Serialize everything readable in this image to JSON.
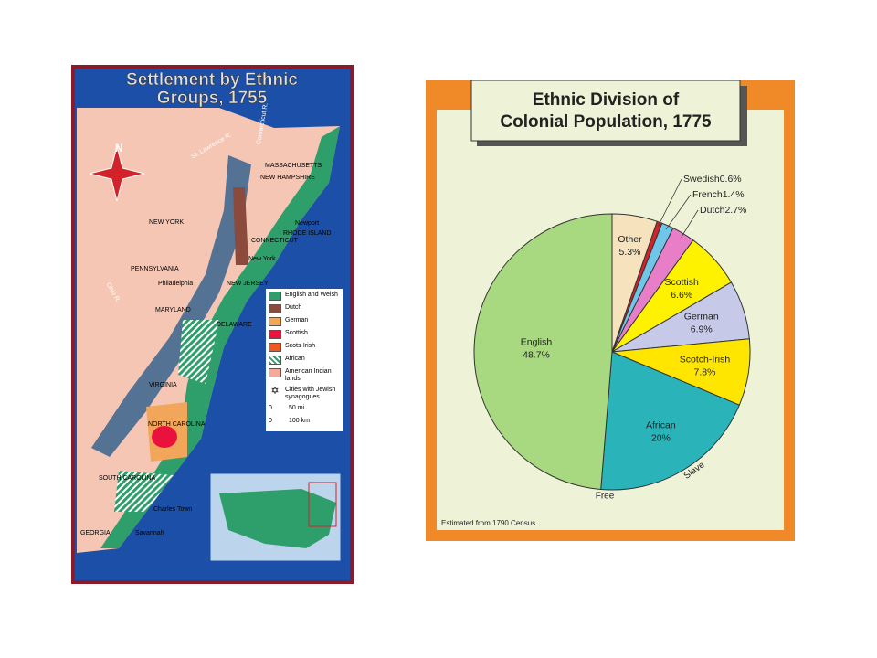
{
  "map": {
    "title": [
      "Settlement by Ethnic",
      "Groups, 1755"
    ],
    "legend": [
      {
        "label": "English and Welsh",
        "color": "#2e9e6a"
      },
      {
        "label": "Dutch",
        "color": "#8b4a3c"
      },
      {
        "label": "German",
        "color": "#f2a65a"
      },
      {
        "label": "Scottish",
        "color": "#e8123c"
      },
      {
        "label": "Scots-Irish",
        "color": "#ee5a24"
      },
      {
        "label": "African",
        "color": "#2e9e6a",
        "style": "hatch"
      },
      {
        "label": "American Indian lands",
        "color": "#f4a99a"
      },
      {
        "label": "Cities with Jewish synagogues",
        "color": "#000000",
        "style": "star"
      }
    ],
    "scale": [
      "0",
      "50 mi",
      "0",
      "100 km"
    ],
    "labels": [
      "N",
      "St. Lawrence R.",
      "Connecticut R.",
      "MASSACHUSETTS",
      "NEW HAMPSHIRE",
      "NEW YORK",
      "Newport",
      "RHODE ISLAND",
      "CONNECTICUT",
      "New York",
      "PENNSYLVANIA",
      "Philadelphia",
      "NEW JERSEY",
      "MARYLAND",
      "DELAWARE",
      "Ohio R.",
      "VIRGINIA",
      "NORTH CAROLINA",
      "SOUTH CAROLINA",
      "Charles Town",
      "GEORGIA",
      "Savannah"
    ]
  },
  "chart_data": {
    "type": "pie",
    "title": [
      "Ethnic Division of",
      "Colonial Population, 1775"
    ],
    "categories": [
      "Other",
      "Swedish",
      "French",
      "Dutch",
      "Scottish",
      "German",
      "Scotch-Irish",
      "African",
      "English"
    ],
    "values": [
      5.3,
      0.6,
      1.4,
      2.7,
      6.6,
      6.9,
      7.8,
      20,
      48.7
    ],
    "value_labels": [
      "5.3%",
      "0.6%",
      "1.4%",
      "2.7%",
      "6.6%",
      "6.9%",
      "7.8%",
      "20%",
      "48.7%"
    ],
    "colors": [
      "#f6e2bc",
      "#d2232a",
      "#6fc6e8",
      "#e97ec8",
      "#fff200",
      "#c6cae8",
      "#ffe600",
      "#2ab3b8",
      "#a8d880"
    ],
    "annotations": [
      "Free",
      "Slave"
    ],
    "note": "Estimated from 1790 Census."
  }
}
